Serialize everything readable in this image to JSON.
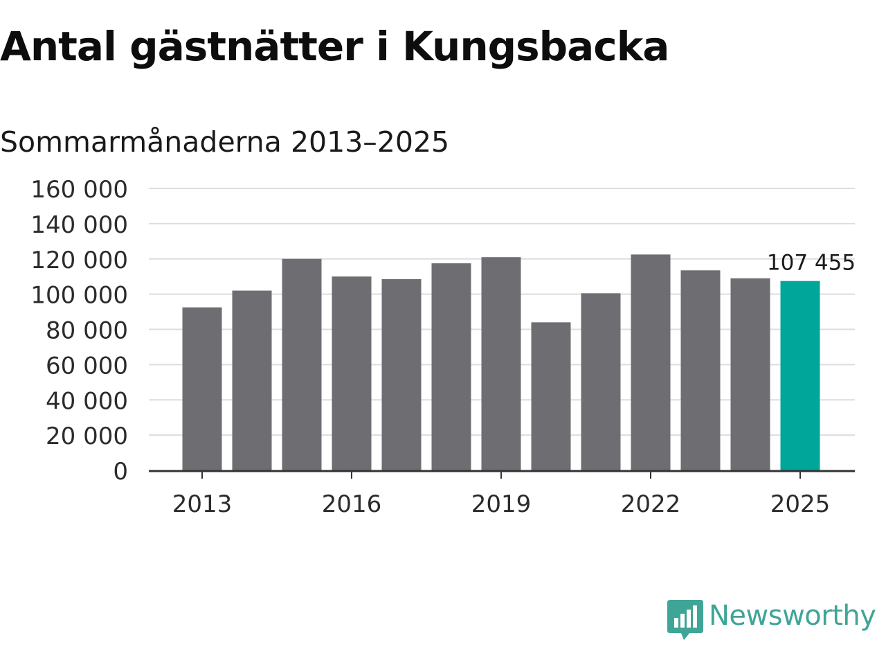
{
  "title": "Antal gästnätter i Kungsbacka",
  "subtitle": "Sommarmånaderna 2013–2025",
  "colors": {
    "bar": "#6e6d72",
    "highlight": "#00a69a",
    "grid": "#dddddd",
    "axis": "#333333",
    "brand": "#3fa596"
  },
  "logo": {
    "icon": "newsworthy-logo-icon",
    "text": "Newsworthy"
  },
  "chart_data": {
    "type": "bar",
    "title": "Antal gästnätter i Kungsbacka",
    "subtitle": "Sommarmånaderna 2013–2025",
    "xlabel": "",
    "ylabel": "",
    "categories": [
      "2013",
      "2014",
      "2015",
      "2016",
      "2017",
      "2018",
      "2019",
      "2020",
      "2021",
      "2022",
      "2023",
      "2024",
      "2025"
    ],
    "values": [
      92500,
      102000,
      120000,
      110000,
      108500,
      117500,
      121000,
      84000,
      100500,
      122500,
      113500,
      109000,
      107455
    ],
    "highlight_index": 12,
    "ylim": [
      0,
      160000
    ],
    "yticks": [
      0,
      20000,
      40000,
      60000,
      80000,
      100000,
      120000,
      140000,
      160000
    ],
    "ytick_labels": [
      "0",
      "20 000",
      "40 000",
      "60 000",
      "80 000",
      "100 000",
      "120 000",
      "140 000",
      "160 000"
    ],
    "xtick_labels": [
      "2013",
      "2016",
      "2019",
      "2022",
      "2025"
    ],
    "annotations": [
      {
        "category": "2025",
        "text": "107 455"
      }
    ],
    "grid": true,
    "legend": "none"
  }
}
